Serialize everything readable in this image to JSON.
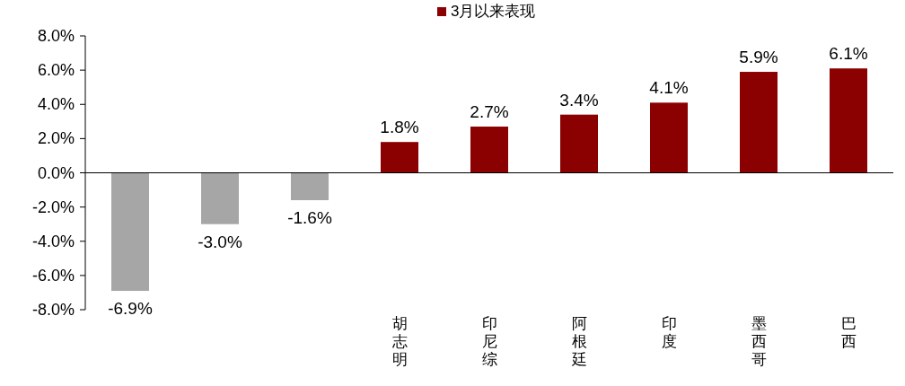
{
  "chart_data": {
    "type": "bar",
    "categories": [
      null,
      null,
      null,
      "胡志明",
      "印尼综",
      "阿根廷",
      "印度",
      "墨西哥",
      "巴西"
    ],
    "series": [
      {
        "name": "3月以来表现",
        "color": "#8b0000",
        "colors": [
          "#a6a6a6",
          "#a6a6a6",
          "#a6a6a6",
          "#8b0000",
          "#8b0000",
          "#8b0000",
          "#8b0000",
          "#8b0000",
          "#8b0000"
        ],
        "values": [
          -6.9,
          -3.0,
          -1.6,
          1.8,
          2.7,
          3.4,
          4.1,
          5.9,
          6.1
        ],
        "value_labels": [
          "-6.9%",
          "-3.0%",
          "-1.6%",
          "1.8%",
          "2.7%",
          "3.4%",
          "4.1%",
          "5.9%",
          "6.1%"
        ]
      }
    ],
    "ylim": [
      -8,
      8
    ],
    "yticks": [
      {
        "value": -8,
        "label": "-8.0%"
      },
      {
        "value": -6,
        "label": "-6.0%"
      },
      {
        "value": -4,
        "label": "-4.0%"
      },
      {
        "value": -2,
        "label": "-2.0%"
      },
      {
        "value": 0,
        "label": "0.0%"
      },
      {
        "value": 2,
        "label": "2.0%"
      },
      {
        "value": 4,
        "label": "4.0%"
      },
      {
        "value": 6,
        "label": "6.0%"
      },
      {
        "value": 8,
        "label": "8.0%"
      }
    ],
    "legend": "top"
  }
}
